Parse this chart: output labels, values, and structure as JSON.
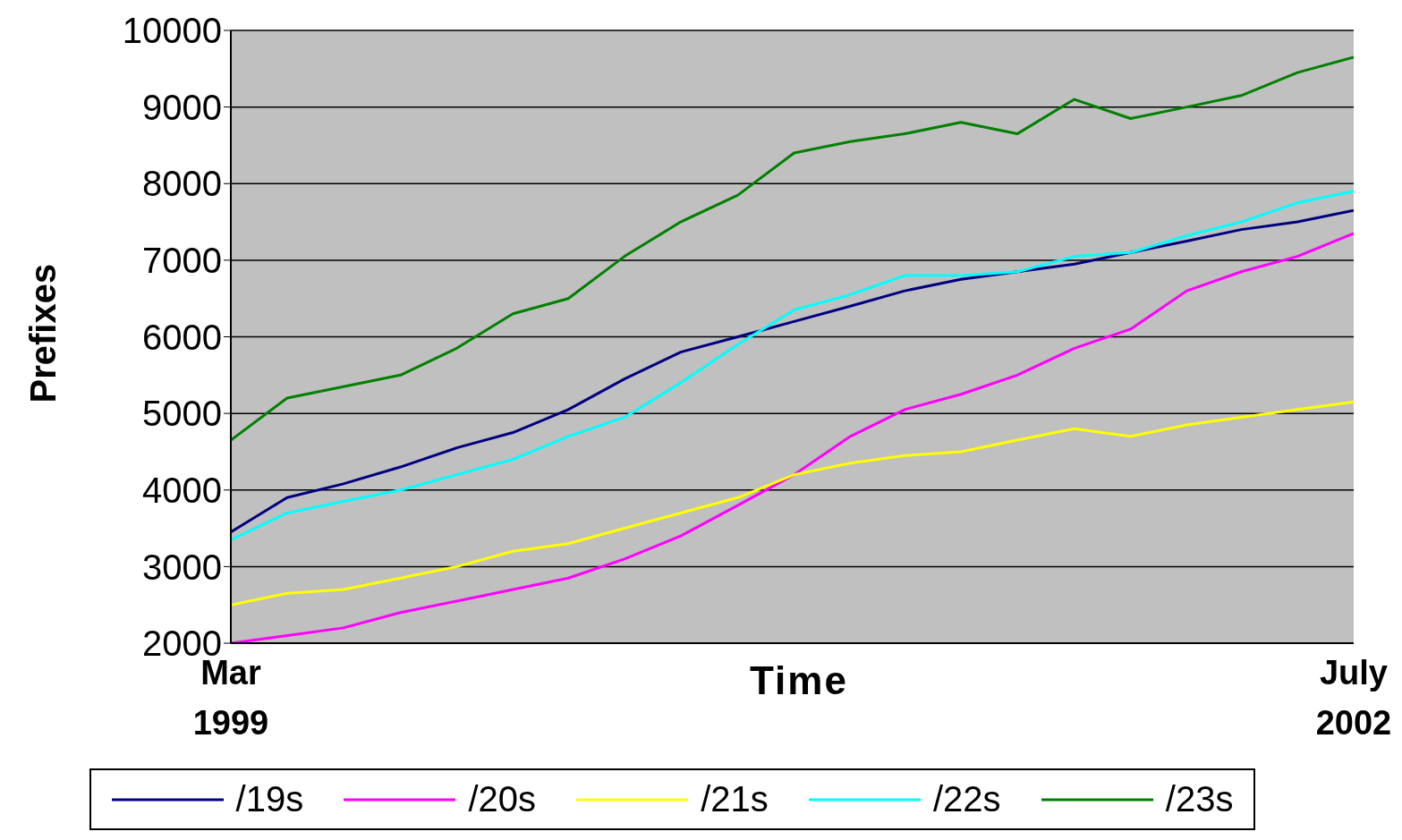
{
  "chart_data": {
    "type": "line",
    "xlabel": "Time",
    "ylabel": "Prefixes",
    "x": [
      "1999-03",
      "1999-05",
      "1999-07",
      "1999-09",
      "1999-11",
      "2000-01",
      "2000-03",
      "2000-05",
      "2000-07",
      "2000-09",
      "2000-11",
      "2001-01",
      "2001-03",
      "2001-05",
      "2001-07",
      "2001-09",
      "2001-11",
      "2002-01",
      "2002-03",
      "2002-05",
      "2002-07"
    ],
    "series": [
      {
        "name": "/19s",
        "color": "#000080",
        "values": [
          3450,
          3900,
          4080,
          4300,
          4550,
          4750,
          5050,
          5450,
          5800,
          6000,
          6200,
          6400,
          6600,
          6750,
          6850,
          6950,
          7100,
          7250,
          7400,
          7500,
          7650
        ]
      },
      {
        "name": "/20s",
        "color": "#ff00ff",
        "values": [
          2000,
          2100,
          2200,
          2400,
          2550,
          2700,
          2850,
          3100,
          3400,
          3800,
          4200,
          4700,
          5050,
          5250,
          5500,
          5850,
          6100,
          6600,
          6850,
          7050,
          7350
        ]
      },
      {
        "name": "/21s",
        "color": "#ffff00",
        "values": [
          2500,
          2650,
          2700,
          2850,
          3000,
          3200,
          3300,
          3500,
          3700,
          3900,
          4200,
          4350,
          4450,
          4500,
          4650,
          4800,
          4700,
          4850,
          4950,
          5050,
          5150
        ]
      },
      {
        "name": "/22s",
        "color": "#00ffff",
        "values": [
          3350,
          3700,
          3850,
          4000,
          4200,
          4400,
          4700,
          4950,
          5400,
          5900,
          6350,
          6550,
          6800,
          6800,
          6850,
          7050,
          7100,
          7320,
          7500,
          7750,
          7900
        ]
      },
      {
        "name": "/23s",
        "color": "#008000",
        "values": [
          4650,
          5200,
          5350,
          5500,
          5850,
          6300,
          6500,
          7050,
          7500,
          7850,
          8400,
          8550,
          8650,
          8800,
          8650,
          9100,
          8850,
          9000,
          9150,
          9450,
          9650
        ]
      }
    ],
    "xlim": [
      "1999-03",
      "2002-07"
    ],
    "xticks": [
      {
        "value": "1999-03",
        "label": "Mar 1999"
      },
      {
        "value": "2002-07",
        "label": "July 2002"
      }
    ],
    "ylim": [
      2000,
      10000
    ],
    "yticks": [
      2000,
      3000,
      4000,
      5000,
      6000,
      7000,
      8000,
      9000,
      10000
    ],
    "grid": "y",
    "legend": "bottom",
    "marker": "none",
    "line_style": "solid"
  }
}
